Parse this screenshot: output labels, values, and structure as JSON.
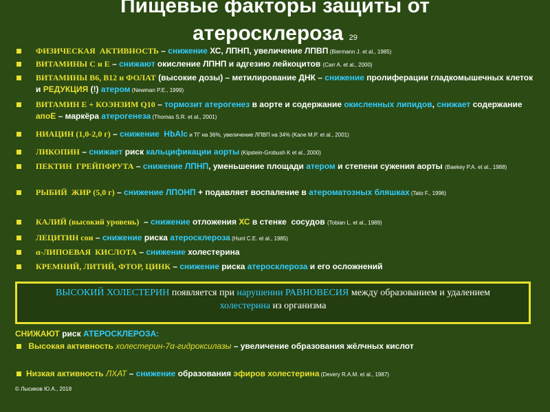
{
  "title": {
    "line1": "Пищевые факторы защиты от",
    "line2": "атеросклероза",
    "page_number": "29"
  },
  "items": [
    [
      {
        "text": "ФИЗИЧЕСКАЯ  АКТИВНОСТЬ",
        "color": "#e8e030",
        "serif": true
      },
      {
        "text": " – ",
        "color": "#ffffff"
      },
      {
        "text": "снижение",
        "color": "#33ccff"
      },
      {
        "text": " ХС, ЛПНП, увеличение ЛПВП",
        "color": "#ffffff"
      },
      {
        "text": " (Biermann J. et al., 1985)",
        "color": "#ffffff",
        "small": true
      }
    ],
    [
      {
        "text": "ВИТАМИНЫ С и Е",
        "color": "#e8e030",
        "serif": true
      },
      {
        "text": " – ",
        "color": "#ffffff"
      },
      {
        "text": "снижают",
        "color": "#33ccff"
      },
      {
        "text": " окисление ЛПНП и адгезию лейкоцитов ",
        "color": "#ffffff"
      },
      {
        "text": "(Carr A. et al., 2000)",
        "color": "#ffffff",
        "small": true
      }
    ],
    [
      {
        "text": "ВИТАМИНЫ В6, В12 и ФОЛАТ",
        "color": "#e8e030",
        "serif": true
      },
      {
        "text": " (высокие дозы) – метилирование ДНК – ",
        "color": "#ffffff"
      },
      {
        "text": "снижение",
        "color": "#33ccff"
      },
      {
        "text": " пролиферации гладкомышечных клеток и ",
        "color": "#ffffff"
      },
      {
        "text": "РЕДУКЦИЯ",
        "color": "#e8e030"
      },
      {
        "text": " (!) ",
        "color": "#ffffff"
      },
      {
        "text": "атером",
        "color": "#33ccff"
      },
      {
        "text": " (Newman P.E., 1999)",
        "color": "#ffffff",
        "small": true
      }
    ],
    [
      {
        "text": "ВИТАМИН Е + КОЭНЗИМ Q10",
        "color": "#e8e030",
        "serif": true
      },
      {
        "text": " – ",
        "color": "#ffffff"
      },
      {
        "text": "тормозит атерогенез",
        "color": "#33ccff"
      },
      {
        "text": " в аорте и содержание ",
        "color": "#ffffff"
      },
      {
        "text": "окисленных липидов",
        "color": "#33ccff"
      },
      {
        "text": ", ",
        "color": "#ffffff"
      },
      {
        "text": "снижает",
        "color": "#33ccff"
      },
      {
        "text": " содержание  ",
        "color": "#ffffff"
      },
      {
        "text": "апоЕ",
        "color": "#e8e030"
      },
      {
        "text": " – маркёра ",
        "color": "#ffffff"
      },
      {
        "text": "атерогенеза",
        "color": "#33ccff"
      },
      {
        "text": " (Thomas S.R. et al., 2001)",
        "color": "#ffffff",
        "small": true
      }
    ],
    [
      {
        "text": "НИАЦИН (1,0-2,0 г)",
        "color": "#e8e030",
        "serif": true
      },
      {
        "text": " – ",
        "color": "#ffffff"
      },
      {
        "text": "снижение  HbAlc",
        "color": "#33ccff"
      },
      {
        "text": " и ТГ на 36%, увеличение ЛПВП на 34% ",
        "color": "#ffffff",
        "small": true
      },
      {
        "text": "(Kane M.P. et al., 2001)",
        "color": "#ffffff",
        "small": true
      }
    ],
    [
      {
        "text": "ЛИКОПИН",
        "color": "#e8e030",
        "serif": true
      },
      {
        "text": " – ",
        "color": "#ffffff"
      },
      {
        "text": "снижает",
        "color": "#33ccff"
      },
      {
        "text": " риск ",
        "color": "#ffffff"
      },
      {
        "text": "кальцификации аорты",
        "color": "#33ccff"
      },
      {
        "text": " (Kipstein-Grobush K et al., 2000)",
        "color": "#ffffff",
        "small": true
      }
    ],
    [
      {
        "text": "ПЕКТИН  ГРЕЙПФРУТА",
        "color": "#e8e030",
        "serif": true
      },
      {
        "text": " – ",
        "color": "#ffffff"
      },
      {
        "text": "снижение ЛПНП",
        "color": "#33ccff"
      },
      {
        "text": ", уменьшение площади ",
        "color": "#ffffff"
      },
      {
        "text": "атером",
        "color": "#33ccff"
      },
      {
        "text": " и степени сужения аорты ",
        "color": "#ffffff"
      },
      {
        "text": "(Baekey P.A. et al., 1988)",
        "color": "#ffffff",
        "small": true
      }
    ],
    [
      {
        "text": "РЫБИЙ  ЖИР (5,0 г)",
        "color": "#e8e030",
        "serif": true
      },
      {
        "text": " – ",
        "color": "#ffffff"
      },
      {
        "text": "снижение ЛПОНП",
        "color": "#33ccff"
      },
      {
        "text": " + подавляет воспаление в ",
        "color": "#ffffff"
      },
      {
        "text": "атероматозных бляшках",
        "color": "#33ccff"
      },
      {
        "text": " (Tato F., 1996)",
        "color": "#ffffff",
        "small": true
      }
    ],
    [
      {
        "text": "КАЛИЙ (высокий уровень)",
        "color": "#e8e030",
        "serif": true
      },
      {
        "text": "  – ",
        "color": "#ffffff"
      },
      {
        "text": "снижение",
        "color": "#33ccff"
      },
      {
        "text": " отложения ",
        "color": "#ffffff"
      },
      {
        "text": "ХС",
        "color": "#e8e030"
      },
      {
        "text": " в стенке  сосудов ",
        "color": "#ffffff"
      },
      {
        "text": "(Tobian L. et al., 1989)",
        "color": "#ffffff",
        "small": true
      }
    ],
    [
      {
        "text": "ЛЕЦИТИН сои",
        "color": "#e8e030",
        "serif": true
      },
      {
        "text": " – ",
        "color": "#ffffff"
      },
      {
        "text": "снижение",
        "color": "#33ccff"
      },
      {
        "text": " риска ",
        "color": "#ffffff"
      },
      {
        "text": "атеросклероза",
        "color": "#33ccff"
      },
      {
        "text": " (Hunt C.E. et al., 1985)",
        "color": "#ffffff",
        "small": true
      }
    ],
    [
      {
        "text": "α-ЛИПОЕВАЯ  КИСЛОТА",
        "color": "#e8e030",
        "serif": true
      },
      {
        "text": " – ",
        "color": "#ffffff"
      },
      {
        "text": "снижение",
        "color": "#33ccff"
      },
      {
        "text": " холестерина",
        "color": "#ffffff"
      }
    ],
    [
      {
        "text": "КРЕМНИЙ, ЛИТИЙ, ФТОР, ЦИНК",
        "color": "#e8e030",
        "serif": true
      },
      {
        "text": " – ",
        "color": "#ffffff"
      },
      {
        "text": "снижение",
        "color": "#33ccff"
      },
      {
        "text": " риска ",
        "color": "#ffffff"
      },
      {
        "text": "атеросклероза",
        "color": "#33ccff"
      },
      {
        "text": " и его осложнений",
        "color": "#ffffff"
      }
    ]
  ],
  "box": [
    {
      "text": "ВЫСОКИЙ ХОЛЕСТЕРИН",
      "color": "#33ccff"
    },
    {
      "text": " появляется при ",
      "color": "#ffffff"
    },
    {
      "text": "нарушении РАВНОВЕСИЯ",
      "color": "#33ccff"
    },
    {
      "text": " между образованием и удалением ",
      "color": "#ffffff"
    },
    {
      "text": "холестерина",
      "color": "#33ccff"
    },
    {
      "text": " из организма",
      "color": "#ffffff"
    }
  ],
  "reduce_heading": [
    {
      "text": "СНИЖАЮТ",
      "color": "#e8e030"
    },
    {
      "text": " риск ",
      "color": "#ffffff"
    },
    {
      "text": "АТЕРОСКЛЕРОЗА:",
      "color": "#33ccff"
    }
  ],
  "reduce_items": [
    [
      {
        "text": " Высокая активность ",
        "color": "#e8e030"
      },
      {
        "text": "холестерин-7α-гидроксилазы",
        "color": "#e8e030",
        "italic": true
      },
      {
        "text": " – увеличение образования жёлчных кислот",
        "color": "#ffffff"
      }
    ],
    [
      {
        "text": "Низкая активность ",
        "color": "#e8e030"
      },
      {
        "text": "ЛХАТ",
        "color": "#e8e030",
        "italic": true
      },
      {
        "text": " – ",
        "color": "#ffffff"
      },
      {
        "text": "снижение",
        "color": "#33ccff"
      },
      {
        "text": " образования ",
        "color": "#ffffff"
      },
      {
        "text": "эфиров холестерина",
        "color": "#e8e030"
      },
      {
        "text": " (Devery R.A.M. et al., 1987)",
        "color": "#ffffff",
        "small": true
      }
    ]
  ],
  "footer": "© Лысиков Ю.А., 2018"
}
